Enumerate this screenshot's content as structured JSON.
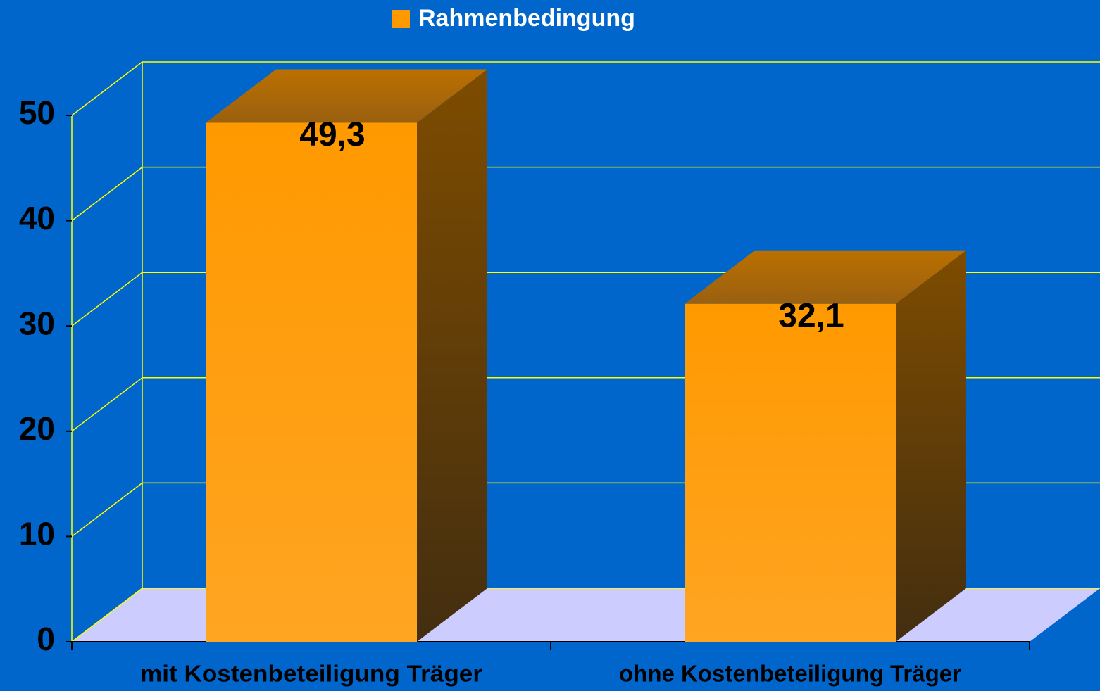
{
  "chart_data": {
    "type": "bar3d",
    "categories": [
      "mit Kostenbeteiligung Träger",
      "ohne Kostenbeteiligung Träger"
    ],
    "series": [
      {
        "name": "Rahmenbedingung",
        "color": "#ff9900",
        "values": [
          49.3,
          32.1
        ],
        "value_labels": [
          "49,3",
          "32,1"
        ]
      }
    ],
    "ylim": [
      0,
      50
    ],
    "yticks": [
      0,
      10,
      20,
      30,
      40,
      50
    ],
    "grid": true,
    "legend": "top"
  }
}
